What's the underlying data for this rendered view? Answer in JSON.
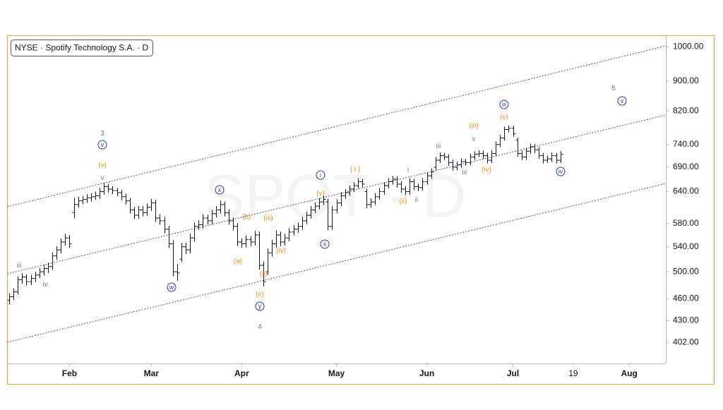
{
  "chart_data": {
    "type": "ohlc",
    "title": "NYSE · Spotify Technology S.A. · D",
    "watermark": "SPOT · D",
    "color": "#131722",
    "yscale": "log",
    "ylim": [
      377,
      1036
    ],
    "yticks": [
      {
        "value": 1000,
        "label": "1000.00"
      },
      {
        "value": 900,
        "label": "900.00"
      },
      {
        "value": 820,
        "label": "820.00"
      },
      {
        "value": 740,
        "label": "740.00"
      },
      {
        "value": 690,
        "label": "690.00"
      },
      {
        "value": 640,
        "label": "640.00"
      },
      {
        "value": 580,
        "label": "580.00"
      },
      {
        "value": 540,
        "label": "540.00"
      },
      {
        "value": 500,
        "label": "500.00"
      },
      {
        "value": 460,
        "label": "460.00"
      },
      {
        "value": 430,
        "label": "430.00"
      },
      {
        "value": 402,
        "label": "402.00"
      }
    ],
    "xlim": [
      -0.5,
      152.5
    ],
    "xticks": [
      {
        "value": 14,
        "label": "Feb"
      },
      {
        "value": 33,
        "label": "Mar"
      },
      {
        "value": 54,
        "label": "Apr"
      },
      {
        "value": 76,
        "label": "May"
      },
      {
        "value": 97,
        "label": "Jun"
      },
      {
        "value": 117,
        "label": "Jul"
      },
      {
        "value": 131,
        "label": "19"
      },
      {
        "value": 144,
        "label": "Aug"
      }
    ],
    "open": [
      458,
      463,
      470,
      488,
      492,
      485,
      490,
      495,
      500,
      505,
      508,
      525,
      535,
      548,
      555,
      600,
      615,
      622,
      625,
      628,
      630,
      632,
      640,
      650,
      645,
      642,
      638,
      630,
      622,
      605,
      595,
      605,
      600,
      610,
      618,
      590,
      585,
      570,
      545,
      500,
      520,
      540,
      535,
      555,
      575,
      578,
      590,
      585,
      598,
      605,
      615,
      600,
      585,
      575,
      548,
      545,
      552,
      548,
      560,
      510,
      500,
      530,
      545,
      560,
      548,
      555,
      565,
      570,
      575,
      585,
      595,
      605,
      612,
      620,
      620,
      575,
      605,
      618,
      632,
      638,
      645,
      652,
      660,
      640,
      615,
      620,
      630,
      640,
      652,
      660,
      665,
      655,
      645,
      640,
      660,
      650,
      648,
      660,
      672,
      690,
      705,
      715,
      712,
      700,
      690,
      695,
      702,
      700,
      712,
      718,
      720,
      715,
      705,
      720,
      740,
      755,
      775,
      778,
      750,
      720,
      712,
      725,
      735,
      728,
      715,
      705,
      708,
      715,
      705
    ],
    "high": [
      468,
      475,
      493,
      498,
      496,
      495,
      500,
      506,
      511,
      514,
      531,
      541,
      554,
      562,
      560,
      628,
      630,
      632,
      635,
      637,
      640,
      647,
      658,
      656,
      651,
      647,
      644,
      636,
      628,
      611,
      612,
      612,
      617,
      626,
      624,
      597,
      592,
      576,
      551,
      512,
      546,
      547,
      562,
      582,
      586,
      597,
      596,
      605,
      612,
      623,
      621,
      606,
      591,
      581,
      554,
      559,
      558,
      567,
      566,
      516,
      537,
      552,
      568,
      566,
      562,
      572,
      577,
      582,
      592,
      602,
      612,
      619,
      627,
      632,
      626,
      612,
      625,
      639,
      645,
      652,
      659,
      667,
      666,
      646,
      627,
      637,
      647,
      659,
      667,
      672,
      671,
      661,
      651,
      667,
      666,
      656,
      667,
      679,
      687,
      712,
      722,
      721,
      718,
      706,
      702,
      709,
      708,
      719,
      725,
      727,
      726,
      721,
      727,
      747,
      762,
      782,
      785,
      784,
      756,
      726,
      732,
      742,
      741,
      734,
      721,
      715,
      722,
      721,
      725
    ],
    "low": [
      452,
      458,
      466,
      482,
      479,
      480,
      484,
      490,
      494,
      498,
      503,
      519,
      529,
      542,
      538,
      590,
      609,
      616,
      618,
      621,
      624,
      626,
      634,
      638,
      635,
      631,
      623,
      615,
      598,
      588,
      589,
      593,
      594,
      603,
      583,
      578,
      563,
      538,
      493,
      486,
      515,
      528,
      529,
      549,
      569,
      571,
      578,
      579,
      591,
      598,
      593,
      578,
      568,
      541,
      538,
      539,
      541,
      542,
      503,
      478,
      495,
      524,
      539,
      541,
      542,
      549,
      559,
      564,
      569,
      579,
      589,
      599,
      606,
      614,
      568,
      569,
      599,
      612,
      626,
      632,
      639,
      646,
      648,
      608,
      609,
      614,
      624,
      634,
      646,
      654,
      648,
      638,
      633,
      634,
      643,
      641,
      642,
      654,
      666,
      684,
      699,
      705,
      693,
      683,
      684,
      689,
      693,
      694,
      706,
      712,
      708,
      698,
      699,
      714,
      734,
      749,
      768,
      758,
      713,
      705,
      706,
      719,
      721,
      708,
      698,
      699,
      702,
      698,
      699
    ],
    "close": [
      463,
      470,
      488,
      492,
      485,
      490,
      495,
      500,
      505,
      508,
      525,
      535,
      548,
      555,
      545,
      615,
      622,
      625,
      628,
      630,
      632,
      640,
      650,
      645,
      642,
      638,
      630,
      622,
      605,
      595,
      605,
      600,
      610,
      618,
      590,
      585,
      570,
      545,
      500,
      498,
      540,
      535,
      555,
      575,
      578,
      590,
      585,
      598,
      605,
      615,
      600,
      585,
      575,
      548,
      545,
      552,
      548,
      560,
      510,
      485,
      530,
      545,
      560,
      548,
      555,
      565,
      570,
      575,
      585,
      595,
      605,
      612,
      620,
      625,
      575,
      605,
      618,
      632,
      638,
      645,
      652,
      660,
      655,
      615,
      620,
      630,
      640,
      652,
      660,
      665,
      655,
      645,
      640,
      660,
      650,
      648,
      660,
      672,
      680,
      705,
      715,
      712,
      700,
      690,
      695,
      702,
      700,
      712,
      718,
      720,
      715,
      705,
      720,
      740,
      755,
      775,
      778,
      765,
      720,
      712,
      725,
      735,
      728,
      715,
      705,
      708,
      715,
      705,
      718
    ],
    "annotations": [
      "iii",
      "iv",
      "3",
      "v",
      "(v)",
      "v",
      "w",
      "x",
      "(b)",
      "(iii)",
      "(a)",
      "(iv)",
      "(ii)",
      "(c)",
      "y",
      "4",
      "i",
      "(v)",
      "ii",
      "( i )",
      "i",
      "(ii)",
      "ii",
      "iii",
      "iv",
      "(iii)",
      "v",
      "(iv)",
      "iii",
      "(v)",
      "iv",
      "5",
      "v"
    ]
  }
}
